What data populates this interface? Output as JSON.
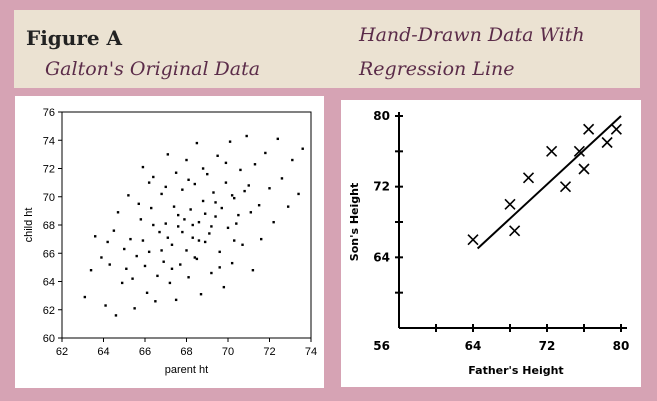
{
  "header": {
    "figure_title": "Figure A",
    "left_subtitle": "Galton's Original Data",
    "right_title_line1": "Hand-Drawn Data With",
    "right_title_line2": "Regression Line"
  },
  "chart_data": [
    {
      "type": "scatter",
      "xlabel": "parent ht",
      "ylabel": "child ht",
      "xlim": [
        62,
        74
      ],
      "ylim": [
        60,
        76
      ],
      "xticks": [
        62,
        64,
        66,
        68,
        70,
        72,
        74
      ],
      "yticks": [
        60,
        62,
        64,
        66,
        68,
        70,
        72,
        74,
        76
      ],
      "points": [
        [
          63.1,
          62.9
        ],
        [
          63.4,
          64.8
        ],
        [
          63.6,
          67.2
        ],
        [
          64.1,
          62.3
        ],
        [
          64.2,
          66.8
        ],
        [
          64.6,
          61.6
        ],
        [
          64.9,
          63.9
        ],
        [
          64.7,
          68.9
        ],
        [
          65.1,
          64.9
        ],
        [
          65.3,
          67.0
        ],
        [
          65.2,
          70.1
        ],
        [
          65.5,
          62.1
        ],
        [
          65.6,
          65.8
        ],
        [
          65.8,
          68.4
        ],
        [
          65.9,
          72.1
        ],
        [
          66.1,
          63.2
        ],
        [
          66.2,
          66.1
        ],
        [
          66.3,
          69.2
        ],
        [
          66.4,
          71.4
        ],
        [
          66.6,
          64.4
        ],
        [
          66.7,
          67.5
        ],
        [
          66.5,
          62.6
        ],
        [
          66.8,
          70.2
        ],
        [
          66.9,
          65.4
        ],
        [
          67.0,
          68.1
        ],
        [
          67.1,
          73.0
        ],
        [
          67.2,
          63.9
        ],
        [
          67.3,
          66.6
        ],
        [
          67.4,
          69.3
        ],
        [
          67.5,
          71.7
        ],
        [
          67.5,
          62.7
        ],
        [
          67.6,
          67.9
        ],
        [
          67.7,
          65.2
        ],
        [
          67.8,
          70.5
        ],
        [
          67.9,
          68.4
        ],
        [
          68.0,
          66.2
        ],
        [
          68.0,
          72.6
        ],
        [
          68.1,
          64.3
        ],
        [
          68.2,
          69.1
        ],
        [
          68.3,
          67.1
        ],
        [
          68.4,
          70.9
        ],
        [
          68.5,
          65.6
        ],
        [
          68.5,
          73.8
        ],
        [
          68.6,
          68.2
        ],
        [
          68.7,
          63.1
        ],
        [
          68.8,
          69.7
        ],
        [
          68.9,
          66.8
        ],
        [
          69.0,
          71.6
        ],
        [
          69.1,
          67.4
        ],
        [
          69.2,
          64.6
        ],
        [
          69.3,
          70.3
        ],
        [
          69.4,
          68.6
        ],
        [
          69.5,
          72.9
        ],
        [
          69.6,
          66.1
        ],
        [
          69.7,
          69.2
        ],
        [
          69.8,
          63.6
        ],
        [
          69.9,
          71.0
        ],
        [
          70.0,
          67.8
        ],
        [
          70.1,
          73.9
        ],
        [
          70.2,
          65.3
        ],
        [
          70.3,
          69.9
        ],
        [
          70.4,
          68.1
        ],
        [
          70.6,
          71.9
        ],
        [
          70.7,
          66.6
        ],
        [
          70.8,
          70.4
        ],
        [
          70.9,
          74.3
        ],
        [
          71.1,
          68.9
        ],
        [
          71.2,
          64.8
        ],
        [
          71.3,
          72.3
        ],
        [
          71.5,
          69.4
        ],
        [
          71.6,
          67.0
        ],
        [
          71.8,
          73.1
        ],
        [
          72.0,
          70.6
        ],
        [
          72.2,
          68.2
        ],
        [
          72.4,
          74.1
        ],
        [
          72.6,
          71.3
        ],
        [
          72.9,
          69.3
        ],
        [
          73.1,
          72.6
        ],
        [
          73.4,
          70.2
        ],
        [
          73.6,
          73.4
        ],
        [
          64.3,
          65.2
        ],
        [
          65.0,
          66.3
        ],
        [
          65.9,
          66.9
        ],
        [
          66.4,
          68.0
        ],
        [
          67.1,
          67.1
        ],
        [
          67.6,
          68.7
        ],
        [
          68.3,
          68.0
        ],
        [
          68.9,
          68.8
        ],
        [
          69.4,
          69.6
        ],
        [
          70.2,
          70.1
        ],
        [
          66.8,
          66.2
        ],
        [
          67.8,
          67.5
        ],
        [
          68.6,
          66.9
        ],
        [
          69.2,
          67.9
        ],
        [
          70.5,
          68.7
        ],
        [
          71.0,
          70.8
        ],
        [
          65.4,
          64.2
        ],
        [
          66.0,
          65.1
        ],
        [
          67.3,
          64.9
        ],
        [
          68.4,
          65.7
        ],
        [
          69.6,
          65.0
        ],
        [
          70.3,
          66.9
        ],
        [
          67.0,
          70.7
        ],
        [
          68.1,
          71.2
        ],
        [
          68.8,
          72.0
        ],
        [
          69.9,
          72.4
        ],
        [
          66.2,
          71.0
        ],
        [
          65.7,
          69.5
        ],
        [
          64.5,
          67.6
        ],
        [
          63.9,
          65.7
        ]
      ]
    },
    {
      "type": "scatter",
      "xlabel": "Father's Height",
      "ylabel": "Son's Height",
      "xlim": [
        56,
        80
      ],
      "ylim": [
        56,
        80
      ],
      "xticks": [
        56,
        64,
        72,
        80
      ],
      "yticks": [
        56,
        64,
        72,
        80
      ],
      "points": [
        [
          64,
          66
        ],
        [
          68,
          70
        ],
        [
          68.5,
          67
        ],
        [
          70,
          73
        ],
        [
          72.5,
          76
        ],
        [
          74,
          72
        ],
        [
          75.5,
          76
        ],
        [
          76,
          74
        ],
        [
          76.5,
          78.5
        ],
        [
          78.5,
          77
        ],
        [
          79.5,
          78.5
        ]
      ],
      "regression_line": [
        [
          64.5,
          65
        ],
        [
          80,
          80
        ]
      ]
    }
  ]
}
